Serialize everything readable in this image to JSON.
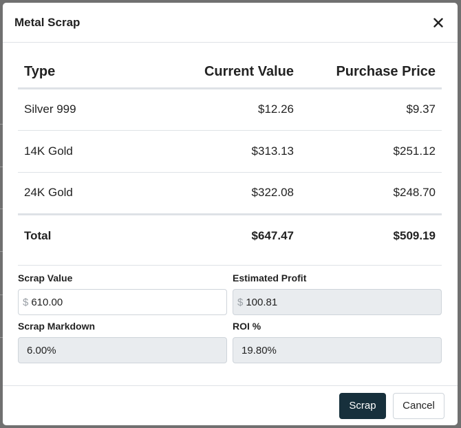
{
  "modal": {
    "title": "Metal Scrap"
  },
  "table": {
    "headers": {
      "type": "Type",
      "current_value": "Current Value",
      "purchase_price": "Purchase Price"
    },
    "rows": [
      {
        "type": "Silver 999",
        "current_value": "$12.26",
        "purchase_price": "$9.37"
      },
      {
        "type": "14K Gold",
        "current_value": "$313.13",
        "purchase_price": "$251.12"
      },
      {
        "type": "24K Gold",
        "current_value": "$322.08",
        "purchase_price": "$248.70"
      }
    ],
    "total": {
      "label": "Total",
      "current_value": "$647.47",
      "purchase_price": "$509.19"
    }
  },
  "fields": {
    "scrap_value": {
      "label": "Scrap Value",
      "prefix": "$",
      "value": "610.00"
    },
    "estimated_profit": {
      "label": "Estimated Profit",
      "prefix": "$",
      "value": "100.81"
    },
    "scrap_markdown": {
      "label": "Scrap Markdown",
      "value": "6.00%"
    },
    "roi": {
      "label": "ROI %",
      "value": "19.80%"
    }
  },
  "footer": {
    "scrap_label": "Scrap",
    "cancel_label": "Cancel"
  },
  "colors": {
    "primary_button": "#17303c",
    "readonly_field": "#e9ecef",
    "border": "#dee2e6"
  },
  "icons": {
    "close": "close-icon"
  }
}
